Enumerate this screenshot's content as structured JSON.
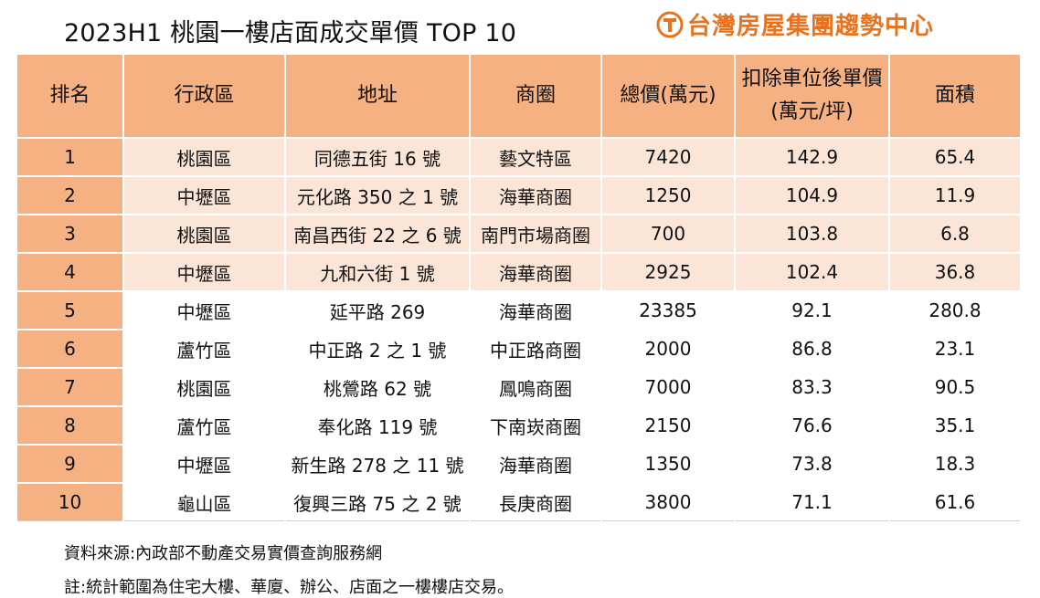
{
  "title": "2023H1 桃園一樓店面成交單價 TOP 10",
  "brand": {
    "name": "台灣房屋集團趨勢中心",
    "color": "#e8731f",
    "icon": "taiwan-realty-logo-icon"
  },
  "colors": {
    "header_bg": "#f6b183",
    "highlight_row_bg": "#fbe5d6",
    "plain_row_bg": "#ffffff"
  },
  "chart_data": {
    "type": "table",
    "title": "2023H1 桃園一樓店面成交單價 TOP 10",
    "columns": [
      "排名",
      "行政區",
      "地址",
      "商圈",
      "總價(萬元)",
      "扣除車位後單價(萬元/坪)",
      "面積"
    ],
    "highlighted_rows": 4,
    "rows": [
      {
        "rank": "1",
        "district": "桃園區",
        "address": "同德五街 16 號",
        "area_name": "藝文特區",
        "total_price": "7420",
        "unit_price": "142.9",
        "size": "65.4"
      },
      {
        "rank": "2",
        "district": "中壢區",
        "address": "元化路 350 之 1 號",
        "area_name": "海華商圈",
        "total_price": "1250",
        "unit_price": "104.9",
        "size": "11.9"
      },
      {
        "rank": "3",
        "district": "桃園區",
        "address": "南昌西街 22 之 6 號",
        "area_name": "南門市場商圈",
        "total_price": "700",
        "unit_price": "103.8",
        "size": "6.8"
      },
      {
        "rank": "4",
        "district": "中壢區",
        "address": "九和六街 1 號",
        "area_name": "海華商圈",
        "total_price": "2925",
        "unit_price": "102.4",
        "size": "36.8"
      },
      {
        "rank": "5",
        "district": "中壢區",
        "address": "延平路 269",
        "area_name": "海華商圈",
        "total_price": "23385",
        "unit_price": "92.1",
        "size": "280.8"
      },
      {
        "rank": "6",
        "district": "蘆竹區",
        "address": "中正路 2 之 1 號",
        "area_name": "中正路商圈",
        "total_price": "2000",
        "unit_price": "86.8",
        "size": "23.1"
      },
      {
        "rank": "7",
        "district": "桃園區",
        "address": "桃鶯路 62 號",
        "area_name": "鳳鳴商圈",
        "total_price": "7000",
        "unit_price": "83.3",
        "size": "90.5"
      },
      {
        "rank": "8",
        "district": "蘆竹區",
        "address": "奉化路 119 號",
        "area_name": "下南崁商圈",
        "total_price": "2150",
        "unit_price": "76.6",
        "size": "35.1"
      },
      {
        "rank": "9",
        "district": "中壢區",
        "address": "新生路 278 之 11 號",
        "area_name": "海華商圈",
        "total_price": "1350",
        "unit_price": "73.8",
        "size": "18.3"
      },
      {
        "rank": "10",
        "district": "龜山區",
        "address": "復興三路 75 之 2 號",
        "area_name": "長庚商圈",
        "total_price": "3800",
        "unit_price": "71.1",
        "size": "61.6"
      }
    ]
  },
  "notes": {
    "source": "資料來源:內政部不動產交易實價查詢服務網",
    "remark": "註:統計範圍為住宅大樓、華廈、辦公、店面之一樓樓店交易。"
  }
}
